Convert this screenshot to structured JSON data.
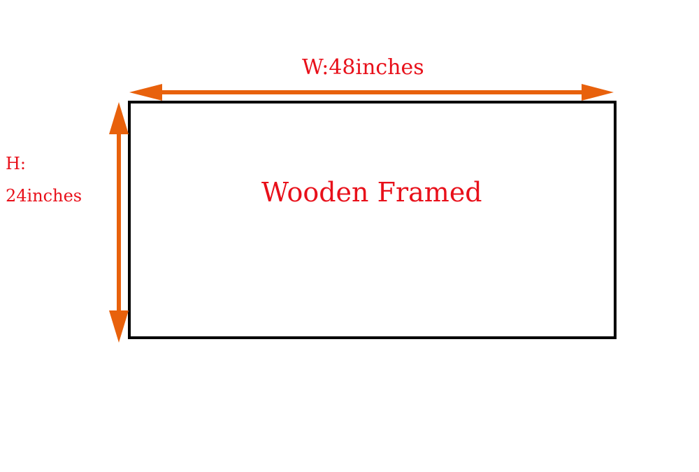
{
  "colors": {
    "arrow": "#e8610c",
    "text": "#e8101a",
    "frame": "#000000",
    "background": "#ffffff"
  },
  "dimensions": {
    "width_label": "W:48inches",
    "height_label_line1": "H:",
    "height_label_line2": "24inches"
  },
  "frame": {
    "label": "Wooden Framed"
  }
}
